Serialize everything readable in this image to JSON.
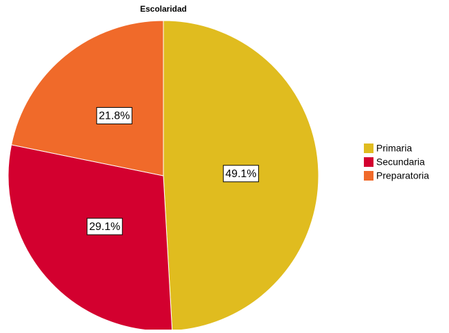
{
  "chart_data": {
    "type": "pie",
    "title": "Escolaridad",
    "categories": [
      "Primaria",
      "Secundaria",
      "Preparatoria"
    ],
    "values": [
      49.1,
      29.1,
      21.8
    ],
    "value_labels": [
      "49.1%",
      "29.1%",
      "21.8%"
    ],
    "colors": [
      "#e0bc1f",
      "#d3002f",
      "#f06a2a"
    ],
    "legend": "right"
  }
}
